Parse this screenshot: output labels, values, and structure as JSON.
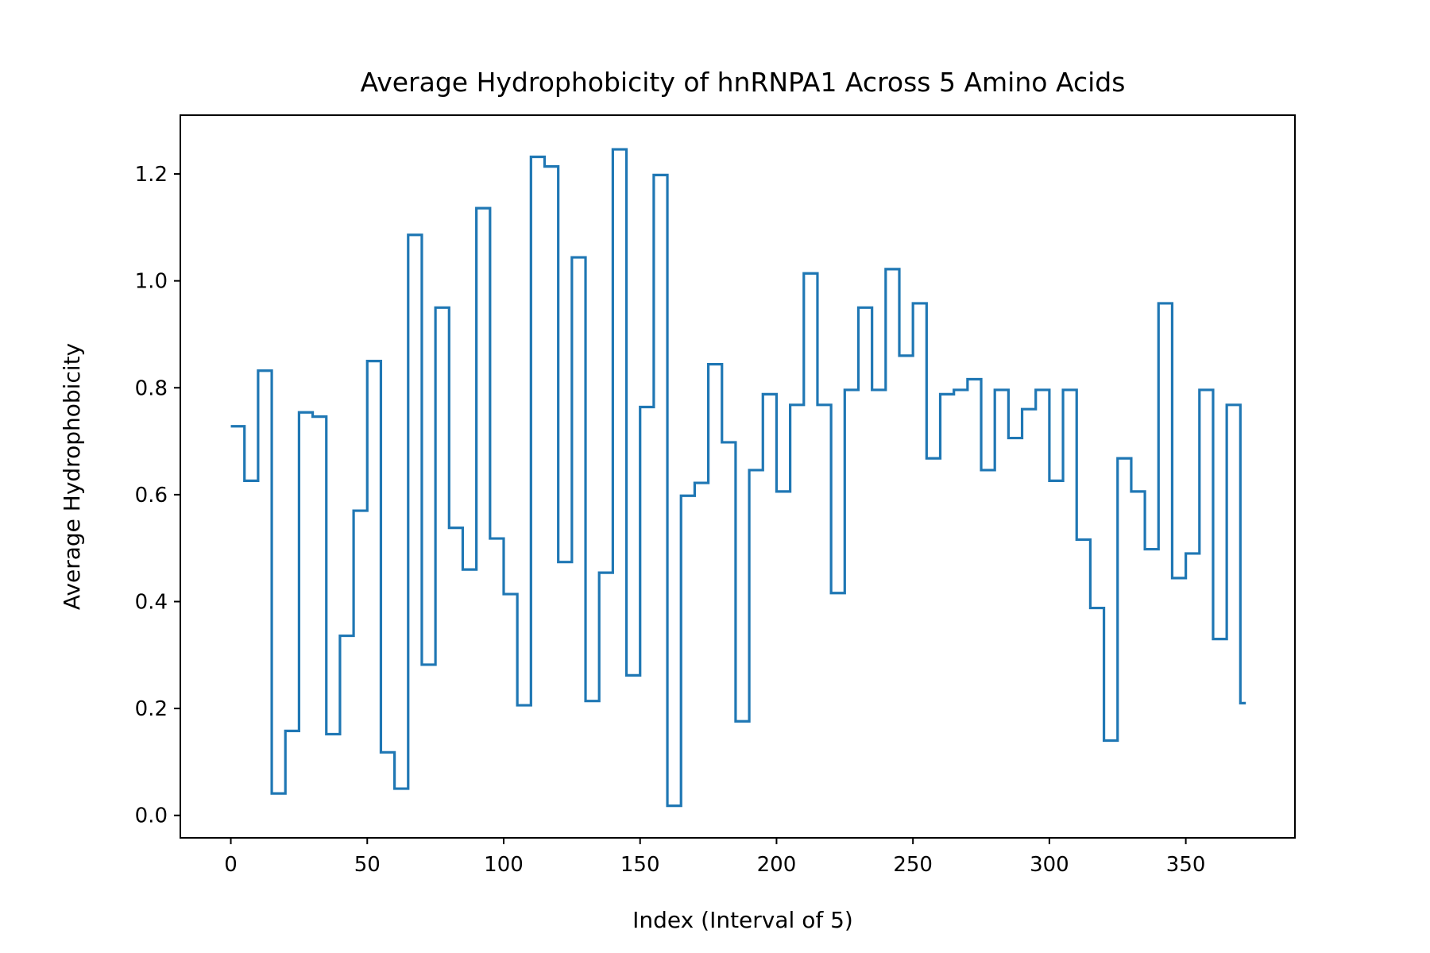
{
  "chart_data": {
    "type": "line",
    "step": "post",
    "title": "Average Hydrophobicity of hnRNPA1 Across 5 Amino Acids",
    "xlabel": "Index (Interval of 5)",
    "ylabel": "Average Hydrophobicity",
    "xlim": [
      -18.5,
      390
    ],
    "ylim": [
      -0.042,
      1.31
    ],
    "xticks": [
      0,
      50,
      100,
      150,
      200,
      250,
      300,
      350
    ],
    "xtick_labels": [
      "0",
      "50",
      "100",
      "150",
      "200",
      "250",
      "300",
      "350"
    ],
    "yticks": [
      0.0,
      0.2,
      0.4,
      0.6,
      0.8,
      1.0,
      1.2
    ],
    "ytick_labels": [
      "0.0",
      "0.2",
      "0.4",
      "0.6",
      "0.8",
      "1.0",
      "1.2"
    ],
    "grid": false,
    "series_color": "#1f77b4",
    "series": [
      {
        "x": [
          0,
          5,
          10,
          15,
          20,
          25,
          30,
          35,
          40,
          45,
          50,
          55,
          60,
          65,
          70,
          75,
          80,
          85,
          90,
          95,
          100,
          105,
          110,
          115,
          120,
          125,
          130,
          135,
          140,
          145,
          150,
          155,
          160,
          165,
          170,
          175,
          180,
          185,
          190,
          195,
          200,
          205,
          210,
          215,
          220,
          225,
          230,
          235,
          240,
          245,
          250,
          255,
          260,
          265,
          270,
          275,
          280,
          285,
          290,
          295,
          300,
          305,
          310,
          315,
          320,
          325,
          330,
          335,
          340,
          345,
          350,
          355,
          360,
          365,
          370,
          372
        ],
        "values": [
          0.728,
          0.626,
          0.832,
          0.041,
          0.158,
          0.754,
          0.746,
          0.152,
          0.336,
          0.57,
          0.85,
          0.118,
          0.05,
          1.086,
          0.282,
          0.95,
          0.538,
          0.46,
          1.136,
          0.518,
          0.414,
          0.206,
          1.232,
          1.214,
          0.474,
          1.044,
          0.214,
          0.454,
          1.246,
          0.262,
          0.764,
          1.198,
          0.018,
          0.598,
          0.622,
          0.844,
          0.698,
          0.176,
          0.646,
          0.788,
          0.606,
          0.768,
          1.014,
          0.768,
          0.416,
          0.796,
          0.95,
          0.796,
          1.022,
          0.86,
          0.958,
          0.668,
          0.788,
          0.796,
          0.816,
          0.646,
          0.796,
          0.706,
          0.76,
          0.796,
          0.626,
          0.796,
          0.516,
          0.388,
          0.14,
          0.668,
          0.606,
          0.498,
          0.958,
          0.444,
          0.49,
          0.796,
          0.33,
          0.768,
          0.21,
          0.21
        ]
      }
    ]
  }
}
